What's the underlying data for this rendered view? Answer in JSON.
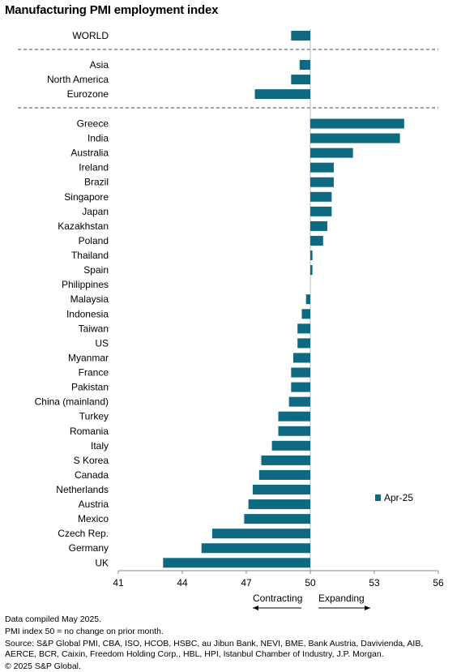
{
  "title": "Manufacturing PMI employment index",
  "chart_data": {
    "type": "bar",
    "orientation": "horizontal",
    "title": "Manufacturing PMI employment index",
    "xlim": [
      41,
      56
    ],
    "xticks": [
      41,
      44,
      47,
      50,
      53,
      56
    ],
    "reference_line": 50,
    "series": [
      {
        "name": "Apr-25",
        "color": "#0e6a80"
      }
    ],
    "groups": [
      {
        "categories": [
          "WORLD"
        ],
        "values": [
          49.1
        ]
      },
      {
        "categories": [
          "Asia",
          "North America",
          "Eurozone"
        ],
        "values": [
          49.5,
          49.1,
          47.4
        ]
      },
      {
        "categories": [
          "Greece",
          "India",
          "Australia",
          "Ireland",
          "Brazil",
          "Singapore",
          "Japan",
          "Kazakhstan",
          "Poland",
          "Thailand",
          "Spain",
          "Philippines",
          "Malaysia",
          "Indonesia",
          "Taiwan",
          "US",
          "Myanmar",
          "France",
          "Pakistan",
          "China (mainland)",
          "Turkey",
          "Romania",
          "Italy",
          "S Korea",
          "Canada",
          "Netherlands",
          "Austria",
          "Mexico",
          "Czech Rep.",
          "Germany",
          "UK"
        ],
        "values": [
          54.4,
          54.2,
          52.0,
          51.1,
          51.1,
          51.0,
          51.0,
          50.8,
          50.6,
          50.1,
          50.1,
          50.0,
          49.8,
          49.6,
          49.4,
          49.4,
          49.2,
          49.1,
          49.1,
          49.0,
          48.5,
          48.5,
          48.2,
          47.7,
          47.6,
          47.3,
          47.1,
          46.9,
          45.4,
          44.9,
          43.1
        ]
      }
    ],
    "legend": {
      "label": "Apr-25",
      "position": "right"
    },
    "annotations": {
      "left": "Contracting",
      "right": "Expanding"
    }
  },
  "footer": {
    "line1": "Data compiled May 2025.",
    "line2": "PMI index 50 = no change on prior month.",
    "line3": "Source: S&P Global PMI, CBA, ISO, HCOB, HSBC, au Jibun Bank, NEVI, BME, Bank Austria, Davivienda, AIB,",
    "line4": "AERCE, BCR, Caixin, Freedom Holding Corp., HBL, HPI, Istanbul Chamber of Industry, J.P. Morgan.",
    "line5": "© 2025 S&P Global."
  }
}
